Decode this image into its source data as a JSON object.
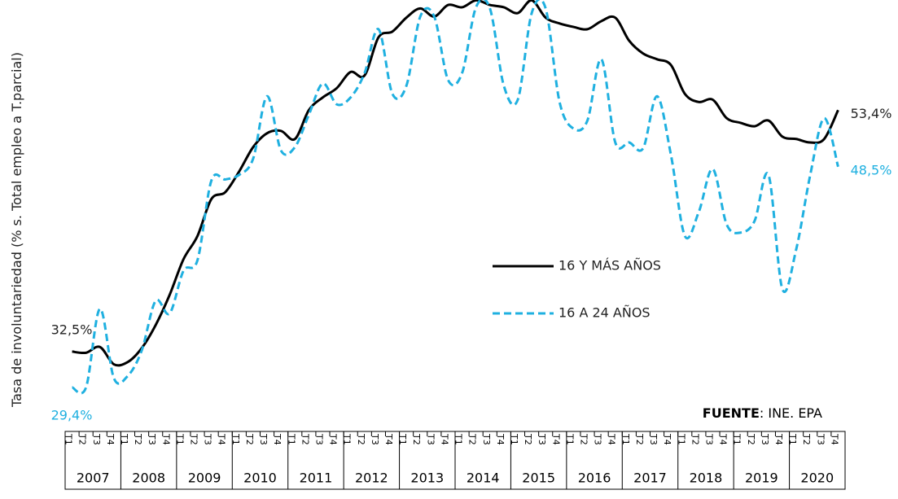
{
  "chart_data": {
    "type": "line",
    "y_label": "Tasa de involuntariedad (% s. Total empleo a T.parcial)",
    "source": {
      "label": "FUENTE",
      "text": ": INE. EPA"
    },
    "categories": [
      "T1",
      "T2",
      "T3",
      "T4",
      "T1",
      "T2",
      "T3",
      "T4",
      "T1",
      "T2",
      "T3",
      "T4",
      "T1",
      "T2",
      "T3",
      "T4",
      "T1",
      "T2",
      "T3",
      "T4",
      "T1",
      "T2",
      "T3",
      "T4",
      "T1",
      "T2",
      "T3",
      "T4",
      "T1",
      "T2",
      "T3",
      "T4",
      "T1",
      "T2",
      "T3",
      "T4",
      "T1",
      "T2",
      "T3",
      "T4",
      "T1",
      "T2",
      "T3",
      "T4",
      "T1",
      "T2",
      "T3",
      "T4",
      "T1",
      "T2",
      "T3",
      "T4",
      "T1",
      "T2",
      "T3",
      "T4"
    ],
    "category_groups": [
      "2007",
      "2008",
      "2009",
      "2010",
      "2011",
      "2012",
      "2013",
      "2014",
      "2015",
      "2016",
      "2017",
      "2018",
      "2019",
      "2020"
    ],
    "ylim": [
      27,
      63
    ],
    "legend_position": "center-right",
    "series": [
      {
        "name": "16 Y MÁS AÑOS",
        "color": "#000000",
        "dash": "solid",
        "values": [
          32.5,
          32.4,
          32.9,
          31.4,
          31.6,
          32.8,
          34.8,
          37.4,
          40.5,
          42.5,
          45.7,
          46.3,
          48.1,
          50.2,
          51.4,
          51.6,
          50.9,
          53.4,
          54.5,
          55.3,
          56.7,
          56.4,
          59.7,
          60.2,
          61.4,
          62.2,
          61.5,
          62.5,
          62.3,
          62.9,
          62.5,
          62.3,
          61.8,
          62.9,
          61.4,
          60.9,
          60.6,
          60.4,
          61.1,
          61.4,
          59.4,
          58.3,
          57.8,
          57.3,
          54.8,
          54.1,
          54.3,
          52.7,
          52.3,
          52.0,
          52.5,
          51.1,
          50.9,
          50.6,
          50.9,
          53.4
        ],
        "value_labels": [
          "32,5%",
          null,
          null,
          null,
          null,
          null,
          null,
          null,
          null,
          null,
          null,
          null,
          null,
          null,
          null,
          null,
          null,
          null,
          null,
          null,
          null,
          null,
          null,
          null,
          null,
          null,
          null,
          null,
          null,
          null,
          null,
          null,
          null,
          null,
          null,
          null,
          null,
          null,
          null,
          null,
          null,
          null,
          null,
          null,
          null,
          null,
          null,
          null,
          null,
          null,
          null,
          null,
          null,
          null,
          null,
          "53,4%"
        ]
      },
      {
        "name": "16 A 24 AÑOS",
        "color": "#1fb0e0",
        "dash": "dashed",
        "values": [
          29.4,
          29.4,
          36.2,
          30.2,
          30.4,
          32.6,
          36.9,
          35.8,
          39.5,
          40.4,
          47.3,
          47.4,
          47.8,
          49.2,
          54.6,
          49.9,
          50.2,
          53.0,
          55.7,
          53.9,
          54.5,
          56.6,
          60.4,
          54.8,
          55.5,
          61.5,
          61.5,
          56.0,
          56.6,
          62.3,
          62.2,
          55.5,
          54.3,
          61.8,
          62.2,
          54.1,
          51.8,
          52.5,
          57.8,
          50.6,
          50.6,
          50.1,
          54.6,
          49.5,
          42.5,
          44.6,
          48.3,
          43.5,
          42.8,
          43.8,
          47.8,
          37.9,
          41.4,
          47.8,
          52.7,
          48.5
        ],
        "value_labels": [
          "29,4%",
          null,
          null,
          null,
          null,
          null,
          null,
          null,
          null,
          null,
          null,
          null,
          null,
          null,
          null,
          null,
          null,
          null,
          null,
          null,
          null,
          null,
          null,
          null,
          null,
          null,
          null,
          null,
          null,
          null,
          null,
          null,
          null,
          null,
          null,
          null,
          null,
          null,
          null,
          null,
          null,
          null,
          null,
          null,
          null,
          null,
          null,
          null,
          null,
          null,
          null,
          null,
          null,
          null,
          null,
          "48,5%"
        ]
      }
    ]
  }
}
